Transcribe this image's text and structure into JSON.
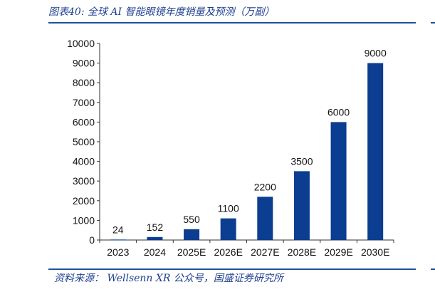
{
  "figure": {
    "title": "图表40:  全球 AI 智能眼镜年度销量及预测（万副）",
    "source": "资料来源：  Wellsenn XR 公众号，国盛证券研究所"
  },
  "colors": {
    "bar": "#0b3d91",
    "rule": "#1f4e9c",
    "text": "#1f3f8f"
  },
  "chart_data": {
    "type": "bar",
    "categories": [
      "2023",
      "2024",
      "2025E",
      "2026E",
      "2027E",
      "2028E",
      "2029E",
      "2030E"
    ],
    "values": [
      24,
      152,
      550,
      1100,
      2200,
      3500,
      6000,
      9000
    ],
    "data_labels": [
      "24",
      "152",
      "550",
      "1100",
      "2200",
      "3500",
      "6000",
      "9000"
    ],
    "yticks": [
      0,
      1000,
      2000,
      3000,
      4000,
      5000,
      6000,
      7000,
      8000,
      9000,
      10000
    ],
    "ylim": [
      0,
      10000
    ],
    "title": "",
    "xlabel": "",
    "ylabel": "",
    "grid": false,
    "legend": "none"
  }
}
